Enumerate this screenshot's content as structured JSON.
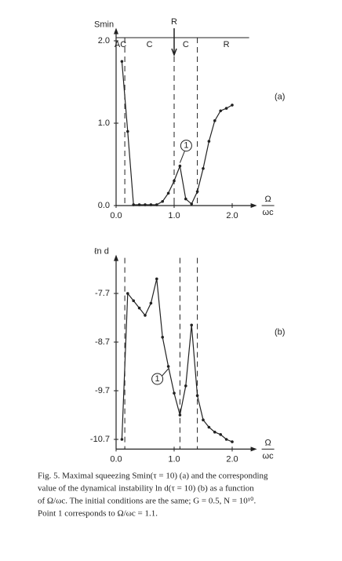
{
  "chart_data": [
    {
      "type": "line",
      "ylabel": "Smin",
      "xlabel": {
        "numerator": "Ω",
        "denominator": "ωc"
      },
      "panel_label": "(a)",
      "point_label": "1",
      "x": [
        0.1,
        0.2,
        0.3,
        0.4,
        0.5,
        0.6,
        0.7,
        0.8,
        0.9,
        1.0,
        1.1,
        1.2,
        1.3,
        1.4,
        1.5,
        1.6,
        1.7,
        1.8,
        1.9,
        2.0
      ],
      "values": [
        1.75,
        0.9,
        0.01,
        0.01,
        0.01,
        0.01,
        0.01,
        0.05,
        0.15,
        0.3,
        0.48,
        0.08,
        0.02,
        0.17,
        0.45,
        0.78,
        1.03,
        1.15,
        1.18,
        1.22
      ],
      "color": "#222222",
      "xlim": [
        0,
        2.4
      ],
      "ylim": [
        0,
        2.1
      ],
      "xticks": [
        {
          "value": 0,
          "label": "0.0"
        },
        {
          "value": 1,
          "label": "1.0"
        },
        {
          "value": 2,
          "label": "2.0"
        }
      ],
      "yticks": [
        {
          "value": 0,
          "label": "0.0"
        },
        {
          "value": 1,
          "label": "1.0"
        },
        {
          "value": 2,
          "label": "2.0"
        }
      ],
      "vlines": [
        0.15,
        1.0,
        1.4
      ],
      "regions": [
        "AC",
        "C",
        "R",
        "C",
        "R"
      ]
    },
    {
      "type": "line",
      "ylabel": "ℓn d",
      "xlabel": {
        "numerator": "Ω",
        "denominator": "ωc"
      },
      "panel_label": "(b)",
      "point_label": "1",
      "x": [
        0.1,
        0.2,
        0.3,
        0.4,
        0.5,
        0.6,
        0.7,
        0.8,
        0.9,
        1.0,
        1.1,
        1.2,
        1.3,
        1.4,
        1.5,
        1.6,
        1.7,
        1.8,
        1.9,
        2.0
      ],
      "values": [
        -10.7,
        -7.7,
        -7.85,
        -8.0,
        -8.15,
        -7.9,
        -7.4,
        -8.6,
        -9.2,
        -9.75,
        -10.2,
        -9.6,
        -8.35,
        -9.8,
        -10.3,
        -10.45,
        -10.55,
        -10.6,
        -10.7,
        -10.75
      ],
      "color": "#222222",
      "xlim": [
        0,
        2.4
      ],
      "ylim": [
        -10.9,
        -7.0
      ],
      "xticks": [
        {
          "value": 0,
          "label": "0.0"
        },
        {
          "value": 1,
          "label": "1.0"
        },
        {
          "value": 2,
          "label": "2.0"
        }
      ],
      "yticks": [
        -7.7,
        -8.7,
        -9.7,
        -10.7
      ],
      "vlines": [
        0.15,
        1.1,
        1.4
      ]
    }
  ],
  "caption": {
    "lines": [
      "Fig. 5. Maximal squeezing Smin(τ = 10) (a) and the corresponding",
      "value of the dynamical instability ln d(τ = 10) (b) as a function",
      "of Ω/ωc. The initial conditions are the same; G = 0.5, N = 10¹⁰.",
      "Point 1 corresponds to Ω/ωc = 1.1."
    ]
  }
}
